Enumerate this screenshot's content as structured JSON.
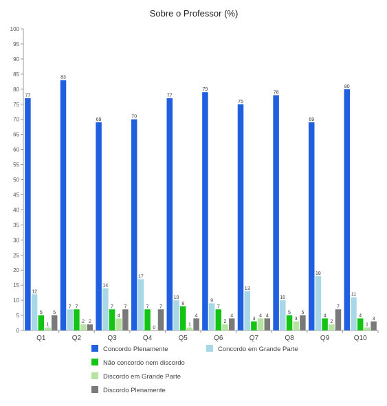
{
  "chart_data": {
    "type": "bar",
    "title": "Sobre o Professor (%)",
    "xlabel": "",
    "ylabel": "",
    "ylim": [
      0,
      100
    ],
    "y_ticks": [
      0,
      5,
      10,
      15,
      20,
      25,
      30,
      35,
      40,
      45,
      50,
      55,
      60,
      65,
      70,
      75,
      80,
      85,
      90,
      95,
      100
    ],
    "grid": false,
    "legend_position": "bottom",
    "categories": [
      "Q1",
      "Q2",
      "Q3",
      "Q4",
      "Q5",
      "Q6",
      "Q7",
      "Q8",
      "Q9",
      "Q10"
    ],
    "series": [
      {
        "name": "Concordo Plenamente",
        "color": "#1f5fe0",
        "values": [
          77,
          83,
          69,
          70,
          77,
          79,
          75,
          78,
          69,
          80
        ]
      },
      {
        "name": "Concordo em Grande Parte",
        "color": "#a8d8e8",
        "values": [
          12,
          7,
          14,
          17,
          10,
          9,
          13,
          10,
          18,
          11
        ]
      },
      {
        "name": "Não concordo nem discordo",
        "color": "#14c414",
        "values": [
          5,
          7,
          7,
          7,
          8,
          7,
          3,
          5,
          4,
          4
        ]
      },
      {
        "name": "Discordo em Grande Parte",
        "color": "#b4e4a0",
        "values": [
          1,
          2,
          4,
          0,
          1,
          2,
          4,
          3,
          2,
          1
        ]
      },
      {
        "name": "Discordo Plenamente",
        "color": "#7a7a7a",
        "values": [
          5,
          2,
          7,
          7,
          4,
          4,
          4,
          5,
          7,
          3
        ]
      }
    ]
  }
}
